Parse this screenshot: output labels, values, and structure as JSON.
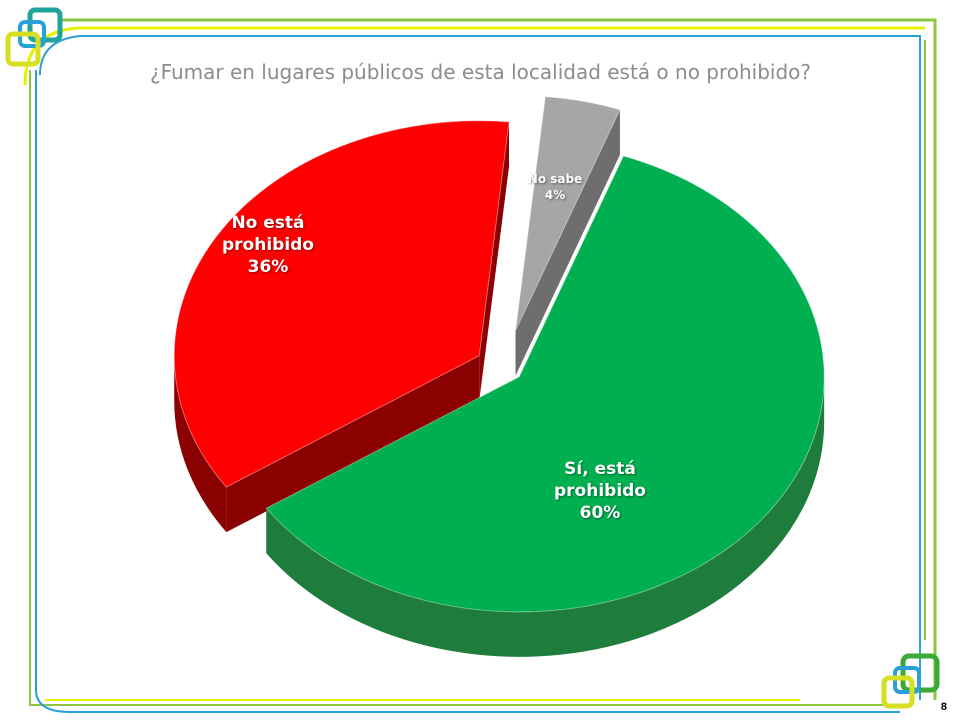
{
  "slide": {
    "title": "¿Fumar en lugares públicos de esta localidad está  o no prohibido?",
    "page_number": "8",
    "colors": {
      "frame_green": "#8dc63f",
      "frame_yellow": "#e8f000",
      "frame_blue": "#29a0d8",
      "logo_green": "#3aaa35",
      "logo_teal": "#1fa39a",
      "logo_yellow": "#d7df23"
    }
  },
  "chart_data": {
    "type": "pie",
    "title": "¿Fumar en lugares públicos de esta localidad está  o no prohibido?",
    "style": "3d-exploded",
    "slices": [
      {
        "label_lines": [
          "Sí, está",
          "prohibido"
        ],
        "percent_label": "60%",
        "value": 60,
        "color": "#00b050",
        "side_color": "#1e7d3c"
      },
      {
        "label_lines": [
          "No está",
          "prohibido"
        ],
        "percent_label": "36%",
        "value": 36,
        "color": "#ff0000",
        "side_color": "#8b0000"
      },
      {
        "label_lines": [
          "No sabe"
        ],
        "percent_label": "4%",
        "value": 4,
        "color": "#a6a6a6",
        "side_color": "#6e6e6e"
      }
    ]
  }
}
